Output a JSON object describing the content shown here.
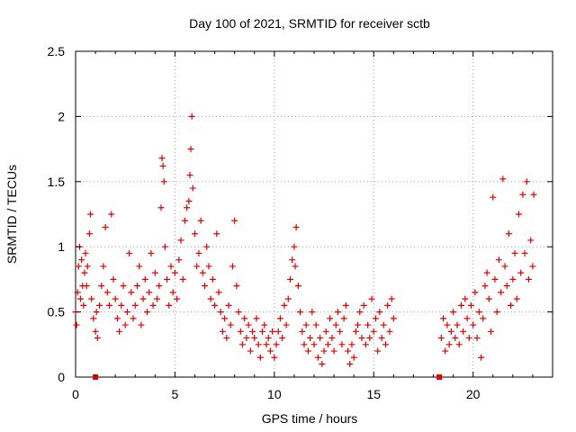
{
  "chart_data": {
    "type": "scatter",
    "title": "Day 100 of 2021, SRMTID for receiver sctb",
    "xlabel": "GPS time / hours",
    "ylabel": "SRMTID / TECUs",
    "xlim": [
      0,
      24
    ],
    "ylim": [
      0,
      2.5
    ],
    "x_ticks": [
      0,
      5,
      10,
      15,
      20
    ],
    "y_ticks": [
      0,
      0.5,
      1,
      1.5,
      2,
      2.5
    ],
    "x_tick_labels": [
      "0",
      "5",
      "10",
      "15",
      "20"
    ],
    "y_tick_labels": [
      "0",
      "0.5",
      "1",
      "1.5",
      "2",
      "2.5"
    ],
    "grid": true,
    "marker": "+",
    "series": [
      {
        "name": "SRMTID",
        "color": "#e00000",
        "points": [
          [
            0.0,
            0.5
          ],
          [
            0.05,
            0.4
          ],
          [
            0.1,
            0.65
          ],
          [
            0.15,
            0.85
          ],
          [
            0.2,
            1.0
          ],
          [
            0.25,
            0.6
          ],
          [
            0.3,
            0.9
          ],
          [
            0.35,
            0.7
          ],
          [
            0.4,
            0.55
          ],
          [
            0.45,
            0.8
          ],
          [
            0.5,
            0.95
          ],
          [
            0.55,
            0.7
          ],
          [
            0.6,
            0.85
          ],
          [
            0.7,
            1.1
          ],
          [
            0.75,
            1.25
          ],
          [
            0.8,
            0.6
          ],
          [
            0.9,
            0.45
          ],
          [
            1.0,
            0.35
          ],
          [
            1.05,
            0.5
          ],
          [
            1.1,
            0.3
          ],
          [
            1.2,
            0.55
          ],
          [
            1.3,
            0.7
          ],
          [
            1.4,
            0.85
          ],
          [
            1.5,
            1.15
          ],
          [
            1.6,
            0.65
          ],
          [
            1.7,
            0.55
          ],
          [
            1.8,
            1.25
          ],
          [
            1.9,
            0.75
          ],
          [
            2.0,
            0.6
          ],
          [
            2.1,
            0.45
          ],
          [
            2.2,
            0.35
          ],
          [
            2.3,
            0.55
          ],
          [
            2.4,
            0.7
          ],
          [
            2.5,
            0.4
          ],
          [
            2.6,
            0.5
          ],
          [
            2.7,
            0.95
          ],
          [
            2.8,
            0.65
          ],
          [
            2.9,
            0.45
          ],
          [
            3.0,
            0.55
          ],
          [
            3.1,
            0.7
          ],
          [
            3.2,
            0.85
          ],
          [
            3.3,
            0.4
          ],
          [
            3.4,
            0.6
          ],
          [
            3.5,
            0.75
          ],
          [
            3.6,
            0.5
          ],
          [
            3.7,
            0.65
          ],
          [
            3.8,
            0.95
          ],
          [
            3.9,
            0.55
          ],
          [
            4.0,
            0.8
          ],
          [
            4.1,
            0.6
          ],
          [
            4.2,
            0.7
          ],
          [
            4.3,
            1.3
          ],
          [
            4.35,
            1.68
          ],
          [
            4.4,
            1.62
          ],
          [
            4.45,
            1.5
          ],
          [
            4.5,
            1.0
          ],
          [
            4.6,
            0.75
          ],
          [
            4.7,
            0.55
          ],
          [
            4.8,
            0.85
          ],
          [
            4.9,
            0.65
          ],
          [
            5.0,
            0.8
          ],
          [
            5.1,
            0.6
          ],
          [
            5.2,
            0.9
          ],
          [
            5.3,
            1.05
          ],
          [
            5.4,
            0.75
          ],
          [
            5.5,
            1.2
          ],
          [
            5.6,
            1.3
          ],
          [
            5.7,
            1.35
          ],
          [
            5.75,
            1.55
          ],
          [
            5.8,
            1.75
          ],
          [
            5.85,
            2.0
          ],
          [
            5.9,
            1.45
          ],
          [
            6.0,
            1.1
          ],
          [
            6.1,
            0.85
          ],
          [
            6.2,
            0.95
          ],
          [
            6.3,
            1.2
          ],
          [
            6.4,
            0.8
          ],
          [
            6.5,
            0.7
          ],
          [
            6.6,
            1.0
          ],
          [
            6.7,
            0.85
          ],
          [
            6.8,
            0.6
          ],
          [
            6.9,
            0.75
          ],
          [
            7.0,
            0.55
          ],
          [
            7.1,
            1.1
          ],
          [
            7.2,
            0.65
          ],
          [
            7.3,
            0.5
          ],
          [
            7.4,
            0.35
          ],
          [
            7.5,
            0.45
          ],
          [
            7.6,
            0.3
          ],
          [
            7.7,
            0.55
          ],
          [
            7.8,
            0.4
          ],
          [
            7.9,
            0.85
          ],
          [
            8.0,
            1.2
          ],
          [
            8.1,
            0.7
          ],
          [
            8.2,
            0.5
          ],
          [
            8.3,
            0.35
          ],
          [
            8.4,
            0.25
          ],
          [
            8.5,
            0.45
          ],
          [
            8.6,
            0.3
          ],
          [
            8.7,
            0.4
          ],
          [
            8.8,
            0.2
          ],
          [
            8.9,
            0.35
          ],
          [
            9.0,
            0.3
          ],
          [
            9.1,
            0.45
          ],
          [
            9.2,
            0.25
          ],
          [
            9.3,
            0.15
          ],
          [
            9.4,
            0.35
          ],
          [
            9.5,
            0.4
          ],
          [
            9.6,
            0.25
          ],
          [
            9.7,
            0.3
          ],
          [
            9.8,
            0.2
          ],
          [
            9.9,
            0.35
          ],
          [
            10.0,
            0.15
          ],
          [
            10.1,
            0.25
          ],
          [
            10.2,
            0.35
          ],
          [
            10.3,
            0.45
          ],
          [
            10.4,
            0.3
          ],
          [
            10.5,
            0.55
          ],
          [
            10.6,
            0.4
          ],
          [
            10.7,
            0.6
          ],
          [
            10.8,
            0.75
          ],
          [
            10.9,
            0.9
          ],
          [
            11.0,
            1.0
          ],
          [
            11.05,
            0.85
          ],
          [
            11.1,
            1.15
          ],
          [
            11.2,
            0.7
          ],
          [
            11.3,
            0.5
          ],
          [
            11.4,
            0.35
          ],
          [
            11.5,
            0.25
          ],
          [
            11.6,
            0.4
          ],
          [
            11.7,
            0.2
          ],
          [
            11.8,
            0.3
          ],
          [
            11.9,
            0.5
          ],
          [
            12.0,
            0.25
          ],
          [
            12.1,
            0.4
          ],
          [
            12.2,
            0.15
          ],
          [
            12.3,
            0.3
          ],
          [
            12.4,
            0.1
          ],
          [
            12.5,
            0.2
          ],
          [
            12.6,
            0.35
          ],
          [
            12.7,
            0.25
          ],
          [
            12.8,
            0.45
          ],
          [
            12.9,
            0.3
          ],
          [
            13.0,
            0.2
          ],
          [
            13.1,
            0.4
          ],
          [
            13.2,
            0.5
          ],
          [
            13.3,
            0.35
          ],
          [
            13.4,
            0.25
          ],
          [
            13.5,
            0.45
          ],
          [
            13.6,
            0.55
          ],
          [
            13.7,
            0.2
          ],
          [
            13.8,
            0.1
          ],
          [
            13.9,
            0.25
          ],
          [
            14.0,
            0.15
          ],
          [
            14.1,
            0.35
          ],
          [
            14.2,
            0.4
          ],
          [
            14.3,
            0.5
          ],
          [
            14.4,
            0.3
          ],
          [
            14.5,
            0.55
          ],
          [
            14.6,
            0.25
          ],
          [
            14.7,
            0.4
          ],
          [
            14.8,
            0.3
          ],
          [
            14.9,
            0.6
          ],
          [
            15.0,
            0.35
          ],
          [
            15.1,
            0.45
          ],
          [
            15.2,
            0.2
          ],
          [
            15.3,
            0.5
          ],
          [
            15.4,
            0.3
          ],
          [
            15.5,
            0.4
          ],
          [
            15.6,
            0.25
          ],
          [
            15.7,
            0.55
          ],
          [
            15.8,
            0.35
          ],
          [
            15.9,
            0.6
          ],
          [
            16.0,
            0.45
          ],
          [
            18.4,
            0.3
          ],
          [
            18.5,
            0.45
          ],
          [
            18.6,
            0.2
          ],
          [
            18.7,
            0.4
          ],
          [
            18.8,
            0.25
          ],
          [
            18.9,
            0.35
          ],
          [
            19.0,
            0.5
          ],
          [
            19.1,
            0.3
          ],
          [
            19.2,
            0.4
          ],
          [
            19.3,
            0.25
          ],
          [
            19.4,
            0.55
          ],
          [
            19.5,
            0.35
          ],
          [
            19.6,
            0.6
          ],
          [
            19.7,
            0.45
          ],
          [
            19.8,
            0.3
          ],
          [
            19.9,
            0.55
          ],
          [
            20.0,
            0.4
          ],
          [
            20.1,
            0.65
          ],
          [
            20.2,
            0.3
          ],
          [
            20.3,
            0.5
          ],
          [
            20.4,
            0.15
          ],
          [
            20.5,
            0.45
          ],
          [
            20.6,
            0.7
          ],
          [
            20.7,
            0.8
          ],
          [
            20.8,
            0.6
          ],
          [
            20.9,
            0.35
          ],
          [
            21.0,
            1.38
          ],
          [
            21.1,
            0.75
          ],
          [
            21.2,
            0.5
          ],
          [
            21.3,
            0.9
          ],
          [
            21.4,
            0.65
          ],
          [
            21.5,
            1.52
          ],
          [
            21.6,
            0.85
          ],
          [
            21.7,
            0.7
          ],
          [
            21.8,
            1.1
          ],
          [
            21.9,
            0.55
          ],
          [
            22.0,
            0.75
          ],
          [
            22.1,
            0.95
          ],
          [
            22.2,
            0.6
          ],
          [
            22.3,
            1.25
          ],
          [
            22.4,
            0.8
          ],
          [
            22.5,
            1.4
          ],
          [
            22.6,
            0.95
          ],
          [
            22.7,
            1.5
          ],
          [
            22.8,
            0.75
          ],
          [
            22.9,
            1.05
          ],
          [
            23.0,
            0.85
          ],
          [
            23.05,
            1.4
          ]
        ]
      },
      {
        "name": "baseline markers",
        "color": "#e00000",
        "marker": "square",
        "points": [
          [
            1.0,
            0.0
          ],
          [
            18.3,
            0.0
          ]
        ]
      }
    ]
  }
}
